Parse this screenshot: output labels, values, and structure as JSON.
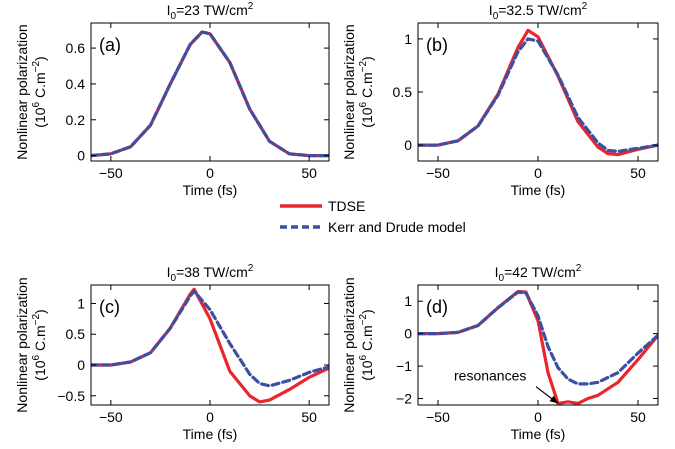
{
  "colors": {
    "tdse": "#e8262b",
    "kerr": "#3d4fa3"
  },
  "legend": [
    {
      "key": "tdse",
      "label": "TDSE",
      "style": "solid"
    },
    {
      "key": "kerr",
      "label": "Kerr and Drude model",
      "style": "dashed"
    }
  ],
  "chart_data": [
    {
      "type": "line",
      "panel_label": "(a)",
      "title": {
        "prefix": "I",
        "sub": "0",
        "mid": "=23 TW/cm",
        "sup": "2"
      },
      "xlabel": "Time (fs)",
      "ylabel": {
        "line1": "Nonlinear polarization",
        "pre": "(10",
        "sup1": "6",
        "mid": " C.m",
        "sup2": "−2",
        "post": ")"
      },
      "xlim": [
        -60,
        60
      ],
      "ylim": [
        -0.03,
        0.74
      ],
      "xticks": [
        -50,
        0,
        50
      ],
      "xticklabels": [
        "−50",
        "0",
        "50"
      ],
      "yticks": [
        0,
        0.2,
        0.4,
        0.6
      ],
      "yticklabels": [
        "0",
        "0.2",
        "0.4",
        "0.6"
      ],
      "series": [
        {
          "name": "TDSE",
          "color_key": "tdse",
          "style": "solid",
          "x": [
            -60,
            -50,
            -40,
            -30,
            -20,
            -10,
            -4,
            0,
            10,
            20,
            30,
            40,
            50,
            60
          ],
          "y": [
            0,
            0.01,
            0.05,
            0.17,
            0.4,
            0.62,
            0.69,
            0.68,
            0.52,
            0.26,
            0.08,
            0.01,
            0,
            0
          ]
        },
        {
          "name": "Kerr and Drude model",
          "color_key": "kerr",
          "style": "dashed",
          "x": [
            -60,
            -50,
            -40,
            -30,
            -20,
            -10,
            -4,
            0,
            10,
            20,
            30,
            40,
            50,
            60
          ],
          "y": [
            0,
            0.01,
            0.05,
            0.17,
            0.4,
            0.62,
            0.69,
            0.68,
            0.52,
            0.26,
            0.08,
            0.01,
            0,
            0
          ]
        }
      ]
    },
    {
      "type": "line",
      "panel_label": "(b)",
      "title": {
        "prefix": "I",
        "sub": "0",
        "mid": "=32.5 TW/cm",
        "sup": "2"
      },
      "xlabel": "Time (fs)",
      "ylabel": {
        "line1": "Nonlinear polarization",
        "pre": "(10",
        "sup1": "6",
        "mid": " C.m",
        "sup2": "−2",
        "post": ")"
      },
      "xlim": [
        -60,
        60
      ],
      "ylim": [
        -0.15,
        1.15
      ],
      "xticks": [
        -50,
        0,
        50
      ],
      "xticklabels": [
        "−50",
        "0",
        "50"
      ],
      "yticks": [
        0,
        0.5,
        1
      ],
      "yticklabels": [
        "0",
        "0.5",
        "1"
      ],
      "series": [
        {
          "name": "TDSE",
          "color_key": "tdse",
          "style": "solid",
          "x": [
            -60,
            -50,
            -40,
            -30,
            -20,
            -10,
            -5,
            0,
            10,
            20,
            30,
            35,
            40,
            50,
            60
          ],
          "y": [
            0,
            0,
            0.04,
            0.18,
            0.48,
            0.92,
            1.08,
            1.02,
            0.65,
            0.22,
            -0.02,
            -0.08,
            -0.09,
            -0.04,
            0
          ]
        },
        {
          "name": "Kerr and Drude model",
          "color_key": "kerr",
          "style": "dashed",
          "x": [
            -60,
            -50,
            -40,
            -30,
            -20,
            -10,
            -5,
            0,
            10,
            20,
            30,
            35,
            40,
            50,
            60
          ],
          "y": [
            0,
            0,
            0.04,
            0.18,
            0.47,
            0.88,
            1.0,
            0.98,
            0.66,
            0.26,
            0.02,
            -0.05,
            -0.06,
            -0.03,
            0
          ]
        }
      ]
    },
    {
      "type": "line",
      "panel_label": "(c)",
      "title": {
        "prefix": "I",
        "sub": "0",
        "mid": "=38 TW/cm",
        "sup": "2"
      },
      "xlabel": "Time (fs)",
      "ylabel": {
        "line1": "Nonlinear polarization",
        "pre": "(10",
        "sup1": "6",
        "mid": " C.m",
        "sup2": "−2",
        "post": ")"
      },
      "xlim": [
        -60,
        60
      ],
      "ylim": [
        -0.65,
        1.3
      ],
      "xticks": [
        -50,
        0,
        50
      ],
      "xticklabels": [
        "−50",
        "0",
        "50"
      ],
      "yticks": [
        -0.5,
        0,
        0.5,
        1
      ],
      "yticklabels": [
        "−0.5",
        "0",
        "0.5",
        "1"
      ],
      "series": [
        {
          "name": "TDSE",
          "color_key": "tdse",
          "style": "solid",
          "x": [
            -60,
            -50,
            -40,
            -30,
            -20,
            -10,
            -8,
            0,
            10,
            20,
            25,
            30,
            40,
            50,
            60
          ],
          "y": [
            0,
            0,
            0.05,
            0.2,
            0.6,
            1.15,
            1.23,
            0.75,
            -0.1,
            -0.5,
            -0.6,
            -0.57,
            -0.4,
            -0.2,
            -0.05
          ]
        },
        {
          "name": "Kerr and Drude model",
          "color_key": "kerr",
          "style": "dashed",
          "x": [
            -60,
            -50,
            -40,
            -30,
            -20,
            -10,
            -8,
            0,
            10,
            20,
            25,
            30,
            40,
            50,
            60
          ],
          "y": [
            0,
            0,
            0.05,
            0.2,
            0.6,
            1.12,
            1.2,
            0.9,
            0.35,
            -0.15,
            -0.3,
            -0.34,
            -0.25,
            -0.12,
            -0.03
          ]
        }
      ]
    },
    {
      "type": "line",
      "panel_label": "(d)",
      "title": {
        "prefix": "I",
        "sub": "0",
        "mid": "=42 TW/cm",
        "sup": "2"
      },
      "xlabel": "Time (fs)",
      "ylabel": {
        "line1": "Nonlinear polarization",
        "pre": "(10",
        "sup1": "6",
        "mid": " C.m",
        "sup2": "−2",
        "post": ")"
      },
      "xlim": [
        -60,
        60
      ],
      "ylim": [
        -2.2,
        1.5
      ],
      "xticks": [
        -50,
        0,
        50
      ],
      "xticklabels": [
        "−50",
        "0",
        "50"
      ],
      "yticks": [
        -2,
        -1,
        0,
        1
      ],
      "yticklabels": [
        "−2",
        "−1",
        "0",
        "1"
      ],
      "annotation": {
        "text": "resonances",
        "x": -42,
        "y": -1.45,
        "arrow_to": [
          10,
          -2.15
        ]
      },
      "series": [
        {
          "name": "TDSE",
          "color_key": "tdse",
          "style": "solid",
          "x": [
            -60,
            -50,
            -40,
            -30,
            -20,
            -10,
            -6,
            0,
            5,
            10,
            15,
            20,
            25,
            30,
            40,
            50,
            60
          ],
          "y": [
            0,
            0,
            0.04,
            0.25,
            0.8,
            1.3,
            1.28,
            0.4,
            -1.2,
            -2.15,
            -2.1,
            -2.15,
            -2.0,
            -1.9,
            -1.5,
            -0.8,
            -0.05
          ]
        },
        {
          "name": "Kerr and Drude model",
          "color_key": "kerr",
          "style": "dashed",
          "x": [
            -60,
            -50,
            -40,
            -30,
            -20,
            -10,
            -6,
            0,
            5,
            10,
            15,
            20,
            25,
            30,
            40,
            50,
            60
          ],
          "y": [
            0,
            0,
            0.04,
            0.25,
            0.8,
            1.28,
            1.25,
            0.55,
            -0.4,
            -1.05,
            -1.4,
            -1.55,
            -1.55,
            -1.5,
            -1.2,
            -0.6,
            -0.05
          ]
        }
      ]
    }
  ]
}
